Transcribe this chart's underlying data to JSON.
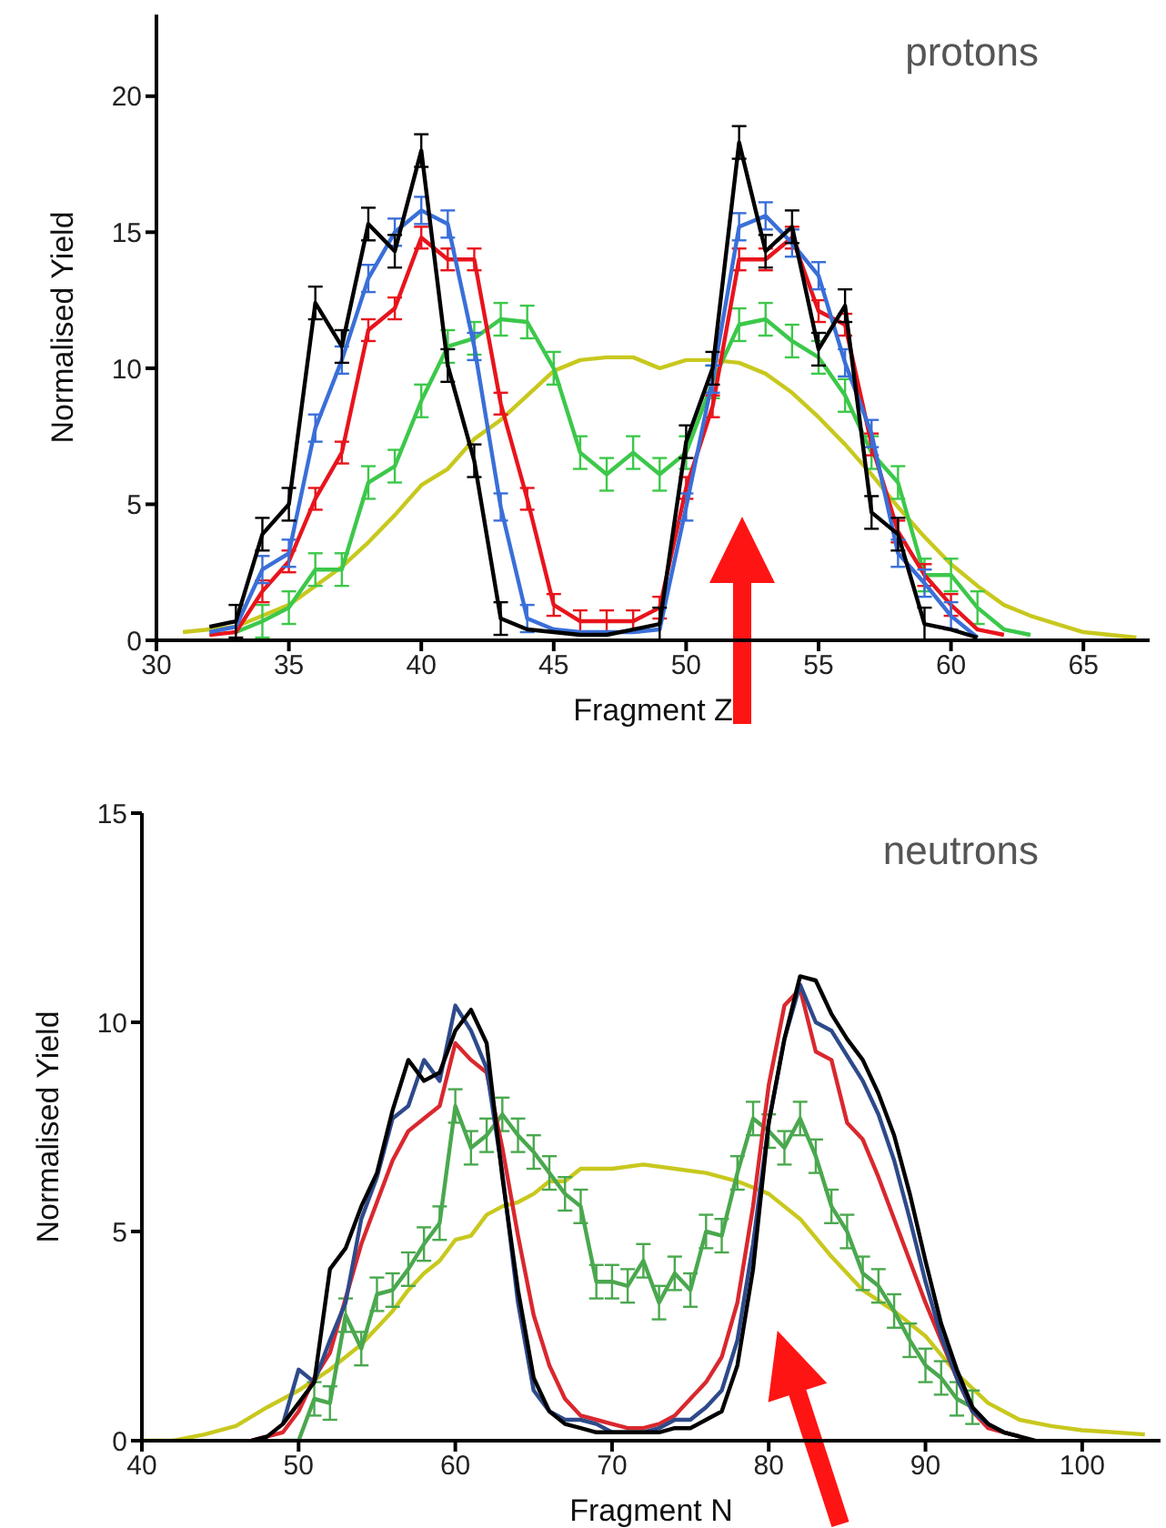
{
  "chart_data": [
    {
      "type": "line",
      "xlabel": "Fragment Z",
      "ylabel": "Normalised Yield",
      "annotations": [
        "protons"
      ],
      "xlim": [
        30,
        67.5
      ],
      "xticks": [
        30,
        35,
        40,
        45,
        50,
        55,
        60,
        65
      ],
      "ylim": [
        0,
        23
      ],
      "yticks": [
        0,
        5,
        10,
        15,
        20
      ],
      "series": [
        {
          "color": "#c8c81e",
          "x": [
            31,
            32,
            33,
            34,
            35,
            36,
            37,
            38,
            39,
            40,
            41,
            42,
            43,
            44,
            45,
            46,
            47,
            48,
            49,
            50,
            51,
            52,
            53,
            54,
            55,
            56,
            57,
            58,
            59,
            60,
            61,
            62,
            63,
            64,
            65,
            66,
            67
          ],
          "values": [
            0.3,
            0.4,
            0.5,
            0.9,
            1.3,
            2.0,
            2.7,
            3.6,
            4.6,
            5.7,
            6.3,
            7.4,
            8.1,
            9.0,
            9.9,
            10.3,
            10.4,
            10.4,
            10.0,
            10.3,
            10.3,
            10.2,
            9.8,
            9.1,
            8.2,
            7.2,
            6.1,
            4.9,
            3.8,
            2.8,
            2.0,
            1.3,
            0.9,
            0.6,
            0.3,
            0.2,
            0.1
          ]
        },
        {
          "color": "#3cc84a",
          "x": [
            33,
            34,
            35,
            36,
            37,
            38,
            39,
            40,
            41,
            42,
            43,
            44,
            45,
            46,
            47,
            48,
            49,
            50,
            51,
            52,
            53,
            54,
            55,
            56,
            57,
            58,
            59,
            60,
            61,
            62,
            63
          ],
          "values": [
            0.3,
            0.7,
            1.2,
            2.6,
            2.6,
            5.8,
            6.4,
            8.8,
            10.8,
            11.1,
            11.8,
            11.7,
            10.0,
            6.9,
            6.1,
            6.9,
            6.1,
            6.9,
            9.5,
            11.6,
            11.8,
            11.0,
            10.4,
            9.0,
            6.9,
            5.8,
            2.4,
            2.4,
            1.2,
            0.4,
            0.2
          ],
          "errors": [
            null,
            0.6,
            0.6,
            0.6,
            0.6,
            0.6,
            0.6,
            0.6,
            0.6,
            0.6,
            0.6,
            0.6,
            0.6,
            0.6,
            0.6,
            0.6,
            0.6,
            0.6,
            0.6,
            0.6,
            0.6,
            0.6,
            0.6,
            0.6,
            0.6,
            0.6,
            0.6,
            0.6,
            0.6,
            null,
            null
          ]
        },
        {
          "color": "#e8141c",
          "x": [
            32,
            33,
            34,
            35,
            36,
            37,
            38,
            39,
            40,
            41,
            42,
            43,
            44,
            45,
            46,
            47,
            48,
            49,
            50,
            51,
            52,
            53,
            54,
            55,
            56,
            57,
            58,
            59,
            60,
            61,
            62
          ],
          "values": [
            0.2,
            0.3,
            1.8,
            2.9,
            5.2,
            6.9,
            11.4,
            12.2,
            14.8,
            14.0,
            14.0,
            8.7,
            5.2,
            1.3,
            0.7,
            0.7,
            0.7,
            1.2,
            5.6,
            8.6,
            14.0,
            14.0,
            14.8,
            12.1,
            11.6,
            7.2,
            4.0,
            2.4,
            1.3,
            0.4,
            0.2
          ],
          "errors": [
            null,
            null,
            0.4,
            0.4,
            0.4,
            0.4,
            0.4,
            0.4,
            0.4,
            0.4,
            0.4,
            0.4,
            0.4,
            0.4,
            0.4,
            0.4,
            0.4,
            0.4,
            0.4,
            0.4,
            0.4,
            0.4,
            0.4,
            0.4,
            0.4,
            0.4,
            0.4,
            0.4,
            0.4,
            null,
            null
          ]
        },
        {
          "color": "#3a6fd8",
          "x": [
            32,
            33,
            34,
            35,
            36,
            37,
            38,
            39,
            40,
            41,
            42,
            43,
            44,
            45,
            46,
            47,
            48,
            49,
            50,
            51,
            52,
            53,
            54,
            55,
            56,
            57,
            58,
            59,
            60,
            61
          ],
          "values": [
            0.3,
            0.5,
            2.6,
            3.2,
            7.8,
            10.3,
            13.3,
            15.0,
            15.8,
            15.3,
            10.8,
            4.9,
            0.8,
            0.4,
            0.3,
            0.3,
            0.3,
            0.4,
            4.9,
            9.6,
            15.2,
            15.6,
            14.6,
            13.4,
            10.2,
            7.6,
            3.2,
            2.1,
            0.9,
            0.1
          ],
          "errors": [
            null,
            null,
            0.5,
            0.5,
            0.5,
            0.5,
            0.5,
            0.5,
            0.5,
            0.5,
            0.5,
            0.5,
            0.5,
            null,
            null,
            null,
            null,
            null,
            0.5,
            0.5,
            0.5,
            0.5,
            0.5,
            0.5,
            0.5,
            0.5,
            0.5,
            0.5,
            0.5,
            null
          ]
        },
        {
          "color": "#000000",
          "x": [
            32,
            33,
            34,
            35,
            36,
            37,
            38,
            39,
            40,
            41,
            42,
            43,
            44,
            45,
            46,
            47,
            48,
            49,
            50,
            51,
            52,
            53,
            54,
            55,
            56,
            57,
            58,
            59,
            60,
            61
          ],
          "values": [
            0.5,
            0.7,
            3.9,
            5.0,
            12.4,
            10.8,
            15.3,
            14.3,
            18.0,
            10.1,
            6.6,
            0.8,
            0.4,
            0.3,
            0.2,
            0.2,
            0.4,
            0.6,
            7.3,
            10.0,
            18.3,
            14.3,
            15.2,
            10.7,
            12.3,
            4.7,
            3.9,
            0.6,
            0.4,
            0.1
          ],
          "errors": [
            null,
            0.6,
            0.6,
            0.6,
            0.6,
            0.6,
            0.6,
            0.6,
            0.6,
            0.6,
            0.6,
            0.6,
            null,
            null,
            null,
            null,
            null,
            0.6,
            0.6,
            0.6,
            0.6,
            0.6,
            0.6,
            0.6,
            0.6,
            0.6,
            0.6,
            0.6,
            null,
            null
          ]
        }
      ]
    },
    {
      "type": "line",
      "xlabel": "Fragment N",
      "ylabel": "Normalised Yield",
      "annotations": [
        "neutrons"
      ],
      "xlim": [
        40,
        105
      ],
      "xticks": [
        40,
        50,
        60,
        70,
        80,
        90,
        100
      ],
      "ylim": [
        0,
        15
      ],
      "yticks": [
        0,
        5,
        10,
        15
      ],
      "series": [
        {
          "color": "#c8c81e",
          "x": [
            40,
            42,
            44,
            46,
            48,
            50,
            52,
            54,
            56,
            57,
            58,
            59,
            60,
            61,
            62,
            63,
            64,
            65,
            66,
            67,
            68,
            69,
            70,
            72,
            74,
            76,
            78,
            80,
            82,
            84,
            86,
            88,
            90,
            92,
            94,
            96,
            98,
            100,
            102,
            104
          ],
          "values": [
            0,
            0,
            0.15,
            0.35,
            0.8,
            1.2,
            1.7,
            2.3,
            3.1,
            3.6,
            4.0,
            4.3,
            4.8,
            4.9,
            5.4,
            5.6,
            5.7,
            5.9,
            6.2,
            6.2,
            6.5,
            6.5,
            6.5,
            6.6,
            6.5,
            6.4,
            6.2,
            5.9,
            5.3,
            4.4,
            3.6,
            3.1,
            2.5,
            1.6,
            0.9,
            0.5,
            0.35,
            0.25,
            0.2,
            0.15
          ]
        },
        {
          "color": "#4aa84e",
          "x": [
            49,
            50,
            51,
            52,
            53,
            54,
            55,
            56,
            57,
            58,
            59,
            60,
            61,
            62,
            63,
            64,
            65,
            66,
            67,
            68,
            69,
            70,
            71,
            72,
            73,
            74,
            75,
            76,
            77,
            78,
            79,
            80,
            81,
            82,
            83,
            84,
            85,
            86,
            87,
            88,
            89,
            90,
            91,
            92,
            93
          ],
          "values": [
            0,
            0,
            1.0,
            0.9,
            3.0,
            2.2,
            3.5,
            3.6,
            4.1,
            4.7,
            5.2,
            8.0,
            7.0,
            7.3,
            7.8,
            7.3,
            6.9,
            6.4,
            5.9,
            5.6,
            3.8,
            3.8,
            3.7,
            4.3,
            3.3,
            4.0,
            3.6,
            5.0,
            4.9,
            6.4,
            7.7,
            7.4,
            7.0,
            7.7,
            6.8,
            5.6,
            5.0,
            4.0,
            3.7,
            3.1,
            2.4,
            1.8,
            1.5,
            1.0,
            0.8
          ],
          "errors": [
            null,
            null,
            0.4,
            0.4,
            0.4,
            0.4,
            0.4,
            0.4,
            0.4,
            0.4,
            0.4,
            0.4,
            0.4,
            0.4,
            0.4,
            0.4,
            0.4,
            0.4,
            0.4,
            0.4,
            0.4,
            0.4,
            0.4,
            0.4,
            0.4,
            0.4,
            0.4,
            0.4,
            0.4,
            0.4,
            0.4,
            0.4,
            0.4,
            0.4,
            0.4,
            0.4,
            0.4,
            0.4,
            0.4,
            0.4,
            0.4,
            0.4,
            0.4,
            0.4,
            0.4
          ]
        },
        {
          "color": "#d9282e",
          "x": [
            47,
            48,
            49,
            50,
            51,
            52,
            53,
            54,
            55,
            56,
            57,
            58,
            59,
            60,
            61,
            62,
            63,
            64,
            65,
            66,
            67,
            68,
            69,
            70,
            71,
            72,
            73,
            74,
            75,
            76,
            77,
            78,
            79,
            80,
            81,
            82,
            83,
            84,
            85,
            86,
            87,
            88,
            89,
            90,
            91,
            92,
            93,
            94,
            95,
            96
          ],
          "values": [
            0,
            0.1,
            0.2,
            0.7,
            1.5,
            2.1,
            3.4,
            4.7,
            5.7,
            6.7,
            7.4,
            7.7,
            8.0,
            9.5,
            9.1,
            8.8,
            7.0,
            4.9,
            3.0,
            1.8,
            1.0,
            0.6,
            0.5,
            0.4,
            0.3,
            0.3,
            0.4,
            0.6,
            1.0,
            1.4,
            2.0,
            3.3,
            5.6,
            8.5,
            10.4,
            10.8,
            9.3,
            9.1,
            7.6,
            7.2,
            6.3,
            5.3,
            4.3,
            3.3,
            2.4,
            1.5,
            0.7,
            0.3,
            0.2,
            0.1
          ]
        },
        {
          "color": "#2e4a8a",
          "x": [
            49,
            50,
            51,
            52,
            53,
            54,
            55,
            56,
            57,
            58,
            59,
            60,
            61,
            62,
            63,
            64,
            65,
            66,
            67,
            68,
            69,
            70,
            71,
            72,
            73,
            74,
            75,
            76,
            77,
            78,
            79,
            80,
            81,
            82,
            83,
            84,
            85,
            86,
            87,
            88,
            89,
            90,
            91,
            92,
            93,
            94,
            95,
            96
          ],
          "values": [
            0.4,
            1.7,
            1.4,
            2.4,
            3.3,
            5.3,
            6.3,
            7.7,
            8.0,
            9.1,
            8.6,
            10.4,
            9.8,
            8.9,
            6.4,
            3.3,
            1.2,
            0.7,
            0.5,
            0.5,
            0.4,
            0.2,
            0.2,
            0.2,
            0.3,
            0.5,
            0.5,
            0.8,
            1.2,
            2.4,
            4.7,
            7.6,
            9.6,
            10.9,
            10.0,
            9.8,
            9.2,
            8.6,
            7.8,
            6.7,
            5.3,
            3.8,
            2.5,
            1.5,
            0.7,
            0.4,
            0.2,
            0.1
          ]
        },
        {
          "color": "#000000",
          "x": [
            47,
            48,
            49,
            50,
            51,
            52,
            53,
            54,
            55,
            56,
            57,
            58,
            59,
            60,
            61,
            62,
            63,
            64,
            65,
            66,
            67,
            68,
            69,
            70,
            71,
            72,
            73,
            74,
            75,
            76,
            77,
            78,
            79,
            80,
            81,
            82,
            83,
            84,
            85,
            86,
            87,
            88,
            89,
            90,
            91,
            92,
            93,
            94,
            95,
            96,
            97
          ],
          "values": [
            0,
            0.1,
            0.4,
            0.9,
            1.4,
            4.1,
            4.6,
            5.6,
            6.4,
            7.9,
            9.1,
            8.6,
            8.8,
            9.8,
            10.3,
            9.5,
            6.3,
            3.6,
            1.5,
            0.7,
            0.4,
            0.3,
            0.2,
            0.2,
            0.2,
            0.2,
            0.2,
            0.3,
            0.3,
            0.5,
            0.7,
            1.8,
            4.1,
            7.6,
            9.6,
            11.1,
            11.0,
            10.2,
            9.6,
            9.1,
            8.3,
            7.3,
            5.9,
            4.3,
            2.8,
            1.7,
            0.8,
            0.4,
            0.2,
            0.1,
            0
          ]
        }
      ]
    }
  ]
}
